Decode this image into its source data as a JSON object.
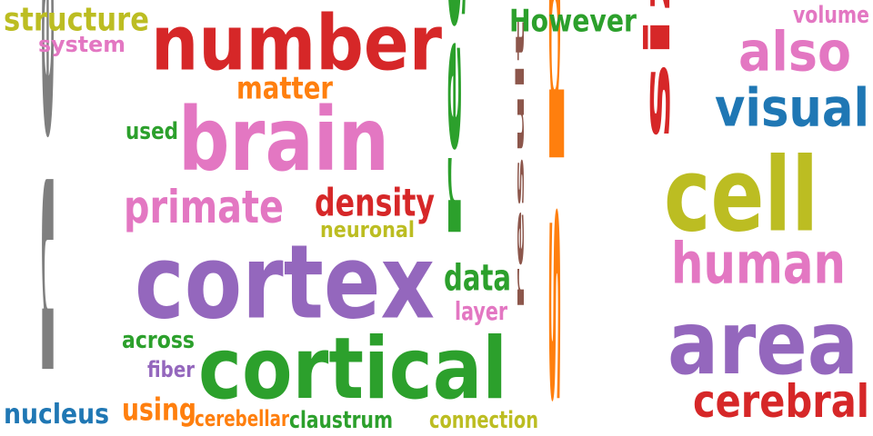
{
  "word_cloud": {
    "words": [
      {
        "text": "neuron",
        "color": "#7f7f7f"
      },
      {
        "text": "number",
        "color": "#d62728"
      },
      {
        "text": "brain",
        "color": "#e377c2"
      },
      {
        "text": "cortex",
        "color": "#9467bd"
      },
      {
        "text": "cortical",
        "color": "#2ca02c"
      },
      {
        "text": "species",
        "color": "#ff7f0e"
      },
      {
        "text": "region",
        "color": "#2ca02c"
      },
      {
        "text": "cell",
        "color": "#bcbd22"
      },
      {
        "text": "area",
        "color": "#9467bd"
      },
      {
        "text": "size",
        "color": "#d62728"
      },
      {
        "text": "also",
        "color": "#e377c2"
      },
      {
        "text": "visual",
        "color": "#1f77b4"
      },
      {
        "text": "human",
        "color": "#e377c2"
      },
      {
        "text": "cerebral",
        "color": "#d62728"
      },
      {
        "text": "primate",
        "color": "#e377c2"
      },
      {
        "text": "density",
        "color": "#d62728"
      },
      {
        "text": "structure",
        "color": "#bcbd22"
      },
      {
        "text": "system",
        "color": "#e377c2"
      },
      {
        "text": "matter",
        "color": "#ff7f0e"
      },
      {
        "text": "used",
        "color": "#2ca02c"
      },
      {
        "text": "neuronal",
        "color": "#bcbd22"
      },
      {
        "text": "data",
        "color": "#2ca02c"
      },
      {
        "text": "layer",
        "color": "#e377c2"
      },
      {
        "text": "result",
        "color": "#8c564b"
      },
      {
        "text": "across",
        "color": "#2ca02c"
      },
      {
        "text": "fiber",
        "color": "#9467bd"
      },
      {
        "text": "using",
        "color": "#ff7f0e"
      },
      {
        "text": "nucleus",
        "color": "#1f77b4"
      },
      {
        "text": "cerebellar",
        "color": "#ff7f0e"
      },
      {
        "text": "claustrum",
        "color": "#2ca02c"
      },
      {
        "text": "connection",
        "color": "#bcbd22"
      },
      {
        "text": "However",
        "color": "#2ca02c"
      },
      {
        "text": "volume",
        "color": "#e377c2"
      }
    ]
  }
}
